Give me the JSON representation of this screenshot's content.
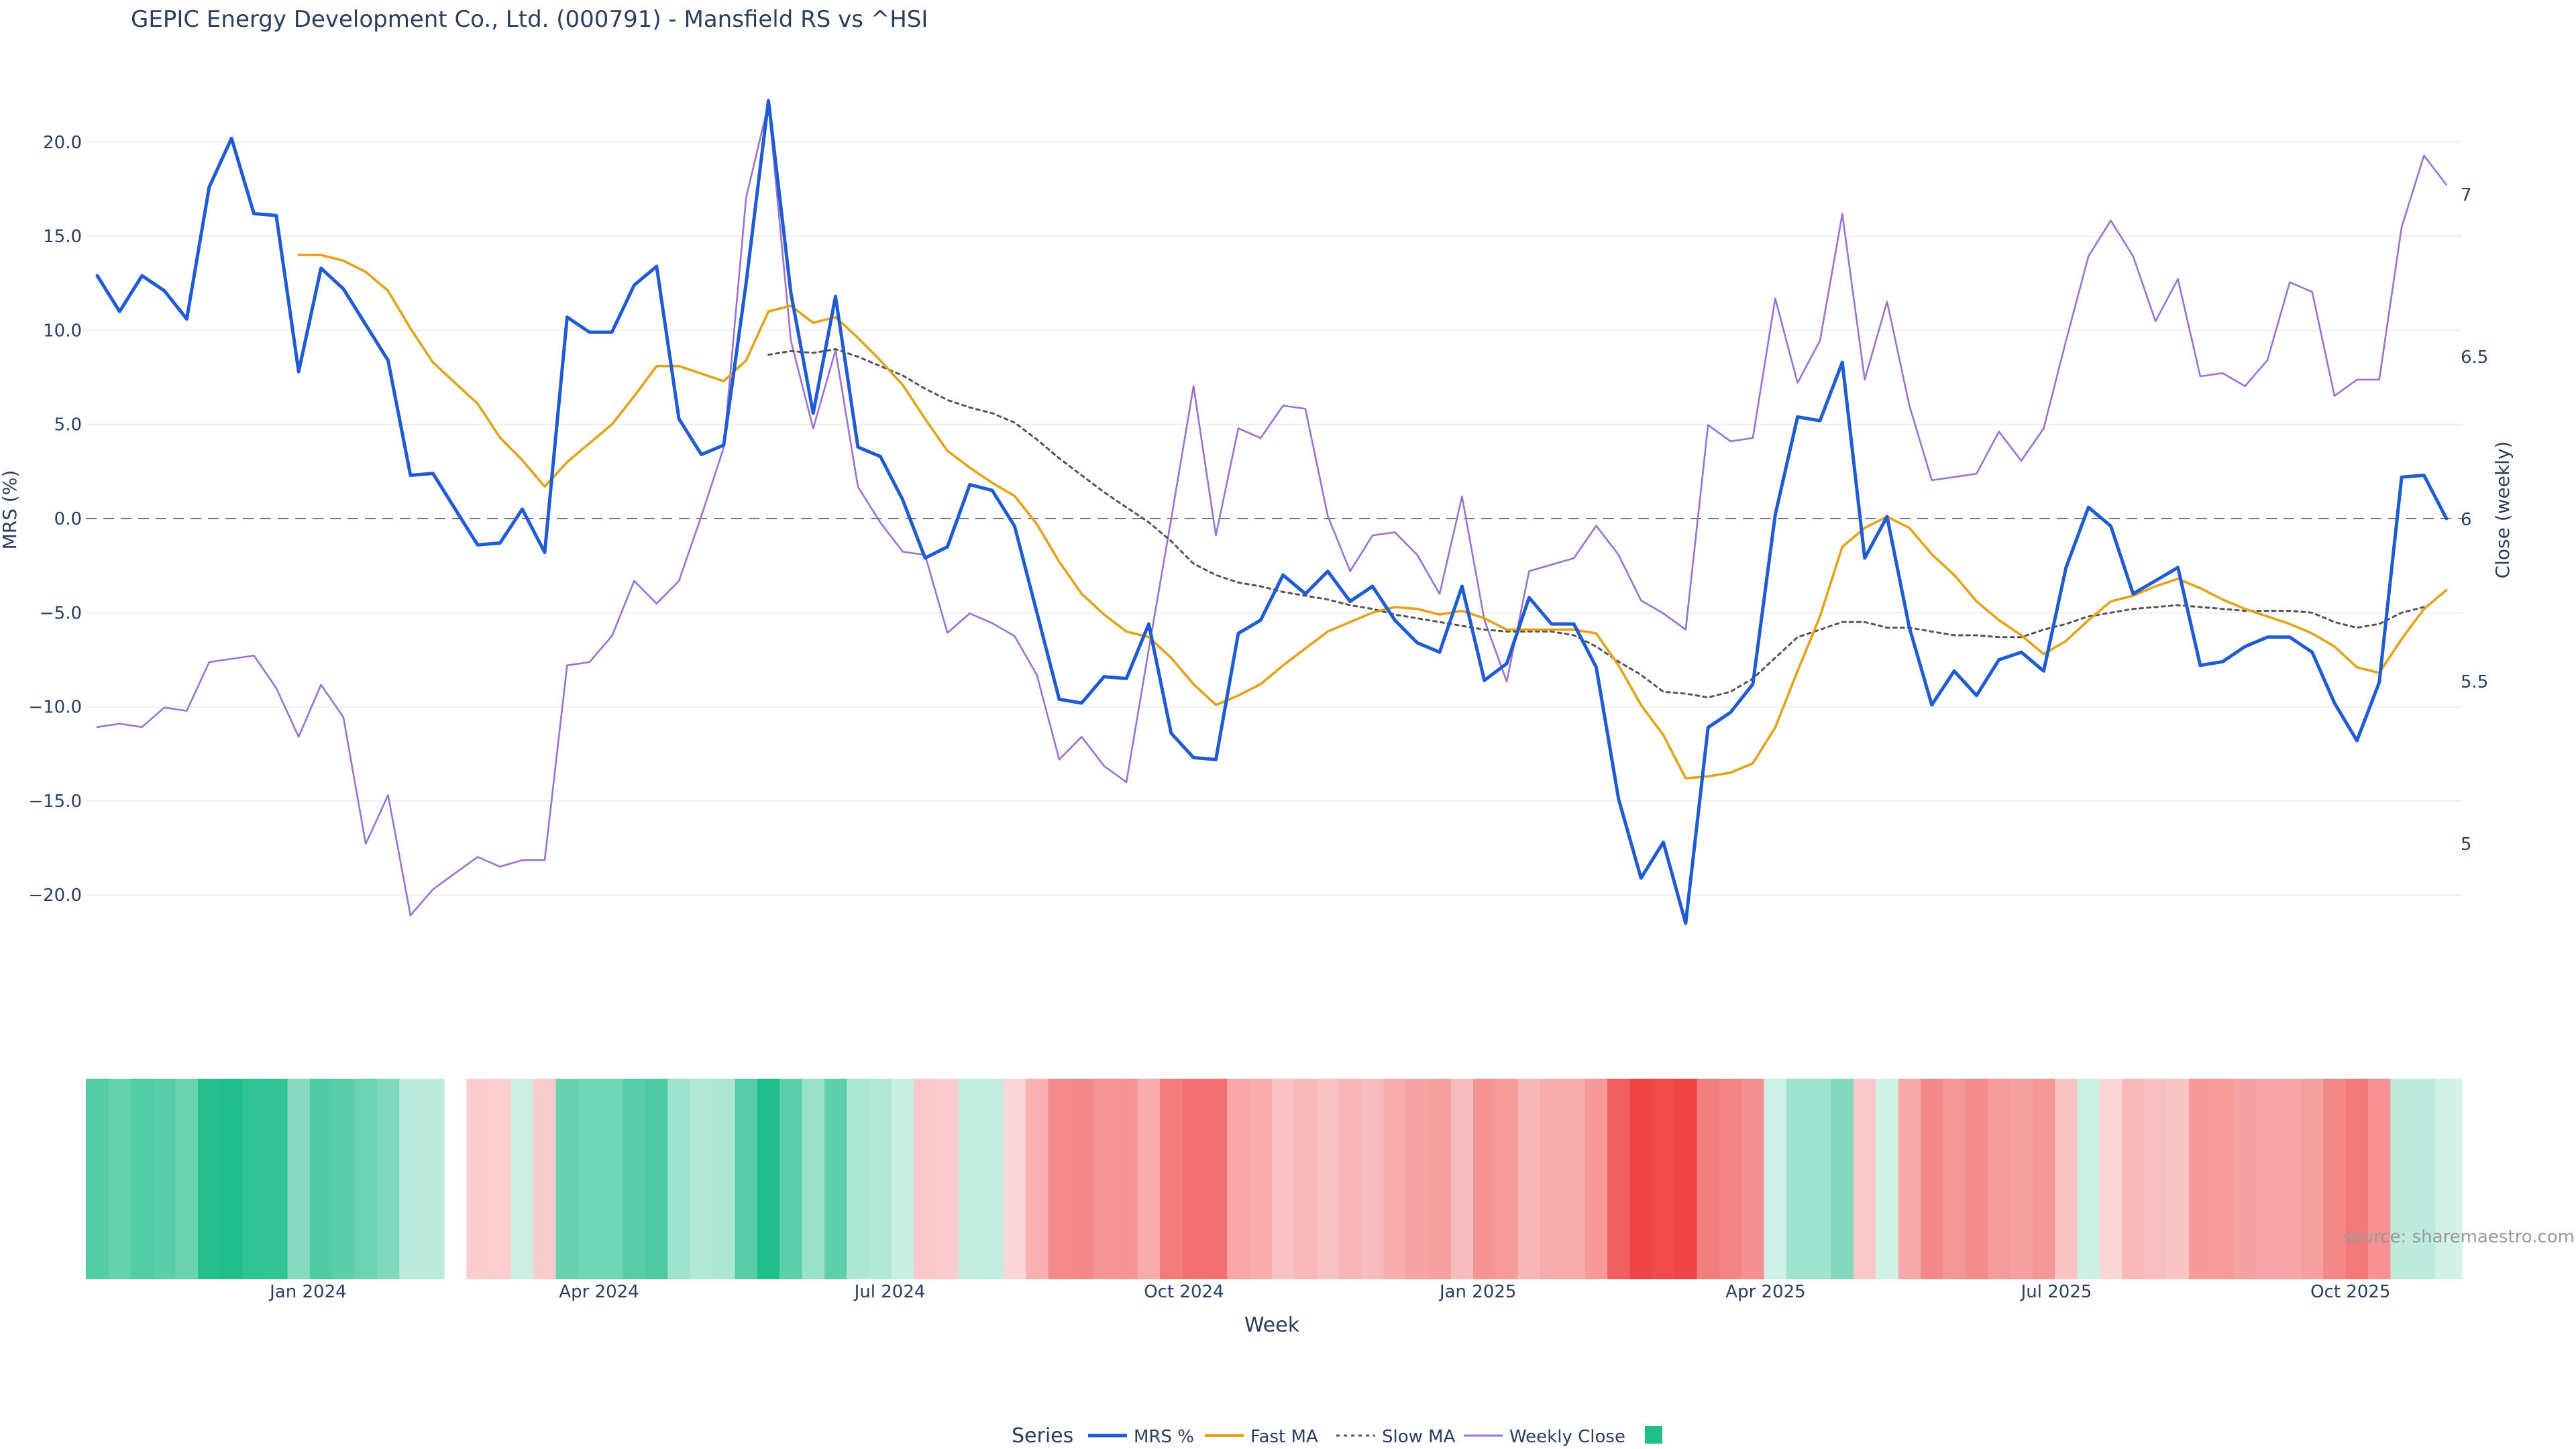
{
  "chart_data": {
    "type": "line",
    "title": "GEPIC Energy Development Co., Ltd. (000791) - Mansfield RS vs ^HSI",
    "xlabel": "Week",
    "ylabel_left": "MRS (%)",
    "ylabel_right": "Close (weekly)",
    "x_start": "2023-10-27",
    "x_interval_days": 7,
    "y_left_range": [
      -24,
      23
    ],
    "y_left_ticks": [
      20,
      15,
      10,
      5,
      0,
      -5,
      -10,
      -15,
      -20
    ],
    "y_left_tick_labels": [
      "20.0",
      "15.0",
      "10.0",
      "5.0",
      "0.0",
      "−5.0",
      "−10.0",
      "−15.0",
      "−20.0"
    ],
    "y_right_range": [
      4.65,
      7.35
    ],
    "y_right_ticks": [
      5,
      5.5,
      6,
      6.5,
      7
    ],
    "y_right_tick_labels": [
      "5",
      "5.5",
      "6",
      "6.5",
      "7"
    ],
    "x_ticks": [
      {
        "date": "2024-01-01",
        "label": "Jan 2024"
      },
      {
        "date": "2024-04-01",
        "label": "Apr 2024"
      },
      {
        "date": "2024-07-01",
        "label": "Jul 2024"
      },
      {
        "date": "2024-10-01",
        "label": "Oct 2024"
      },
      {
        "date": "2025-01-01",
        "label": "Jan 2025"
      },
      {
        "date": "2025-04-01",
        "label": "Apr 2025"
      },
      {
        "date": "2025-07-01",
        "label": "Jul 2025"
      },
      {
        "date": "2025-10-01",
        "label": "Oct 2025"
      }
    ],
    "zero_line": true,
    "grid": true,
    "legend_position": "bottom-center",
    "legend_title": "Series",
    "series": [
      {
        "name": "MRS %",
        "axis": "left",
        "color": "#1f5bd1",
        "style": "solid",
        "values": [
          12.9,
          11.0,
          12.9,
          12.1,
          10.6,
          17.6,
          20.2,
          16.2,
          16.1,
          7.8,
          13.3,
          12.2,
          10.3,
          8.4,
          2.3,
          2.4,
          0.5,
          -1.4,
          -1.3,
          0.5,
          -1.8,
          10.7,
          9.9,
          9.9,
          12.4,
          13.4,
          5.3,
          3.4,
          3.9,
          12.5,
          22.2,
          12.0,
          5.6,
          11.8,
          3.8,
          3.3,
          1.0,
          -2.1,
          -1.5,
          1.8,
          1.5,
          -0.4,
          -5.0,
          -9.6,
          -9.8,
          -8.4,
          -8.5,
          -5.6,
          -11.4,
          -12.7,
          -12.8,
          -6.1,
          -5.4,
          -3.0,
          -4.0,
          -2.8,
          -4.4,
          -3.6,
          -5.4,
          -6.6,
          -7.1,
          -3.6,
          -8.6,
          -7.7,
          -4.2,
          -5.6,
          -5.6,
          -7.9,
          -14.9,
          -19.1,
          -17.2,
          -21.5,
          -11.1,
          -10.3,
          -8.8,
          0.2,
          5.4,
          5.2,
          8.3,
          -2.1,
          0.1,
          -5.8,
          -9.9,
          -8.1,
          -9.4,
          -7.5,
          -7.1,
          -8.1,
          -2.6,
          0.6,
          -0.4,
          -4.0,
          -3.3,
          -2.6,
          -7.8,
          -7.6,
          -6.8,
          -6.3,
          -6.3,
          -7.1,
          -9.8,
          -11.8,
          -8.7,
          2.2,
          2.3,
          0.0
        ]
      },
      {
        "name": "Fast MA",
        "axis": "left",
        "color": "#e3a21a",
        "style": "solid",
        "values": [
          null,
          null,
          null,
          null,
          null,
          null,
          null,
          null,
          null,
          14.0,
          14.0,
          13.7,
          13.1,
          12.1,
          10.1,
          8.3,
          7.2,
          6.1,
          4.3,
          3.1,
          1.7,
          3.0,
          4.0,
          5.0,
          6.5,
          8.1,
          8.1,
          7.7,
          7.3,
          8.4,
          11.0,
          11.3,
          10.4,
          10.7,
          9.6,
          8.4,
          7.1,
          5.3,
          3.6,
          2.7,
          1.9,
          1.2,
          -0.3,
          -2.3,
          -4.0,
          -5.1,
          -6.0,
          -6.3,
          -7.4,
          -8.8,
          -9.9,
          -9.4,
          -8.8,
          -7.8,
          -6.9,
          -6.0,
          -5.5,
          -5.0,
          -4.7,
          -4.8,
          -5.1,
          -4.9,
          -5.3,
          -5.9,
          -5.9,
          -5.9,
          -5.9,
          -6.1,
          -7.8,
          -9.9,
          -11.5,
          -13.8,
          -13.7,
          -13.5,
          -13.0,
          -11.1,
          -8.1,
          -5.2,
          -1.5,
          -0.5,
          0.1,
          -0.5,
          -1.9,
          -3.0,
          -4.4,
          -5.4,
          -6.2,
          -7.2,
          -6.5,
          -5.4,
          -4.4,
          -4.1,
          -3.6,
          -3.2,
          -3.7,
          -4.3,
          -4.8,
          -5.2,
          -5.6,
          -6.1,
          -6.8,
          -7.9,
          -8.2,
          -6.4,
          -4.8,
          -3.8
        ]
      },
      {
        "name": "Slow MA",
        "axis": "left",
        "color": "#555555",
        "style": "dotted",
        "values": [
          null,
          null,
          null,
          null,
          null,
          null,
          null,
          null,
          null,
          null,
          null,
          null,
          null,
          null,
          null,
          null,
          null,
          null,
          null,
          null,
          null,
          null,
          null,
          null,
          null,
          null,
          null,
          null,
          null,
          null,
          8.7,
          8.9,
          8.8,
          9.0,
          8.6,
          8.1,
          7.6,
          6.9,
          6.3,
          5.9,
          5.6,
          5.1,
          4.2,
          3.2,
          2.3,
          1.4,
          0.6,
          -0.2,
          -1.2,
          -2.4,
          -3.0,
          -3.4,
          -3.6,
          -3.9,
          -4.1,
          -4.3,
          -4.6,
          -4.8,
          -5.1,
          -5.3,
          -5.5,
          -5.7,
          -5.9,
          -6.0,
          -6.0,
          -6.0,
          -6.2,
          -6.8,
          -7.6,
          -8.3,
          -9.2,
          -9.3,
          -9.5,
          -9.2,
          -8.5,
          -7.4,
          -6.3,
          -5.9,
          -5.5,
          -5.5,
          -5.8,
          -5.8,
          -6.0,
          -6.2,
          -6.2,
          -6.3,
          -6.3,
          -5.9,
          -5.6,
          -5.2,
          -5.0,
          -4.8,
          -4.7,
          -4.6,
          -4.7,
          -4.8,
          -4.9,
          -4.9,
          -4.9,
          -5.0,
          -5.5,
          -5.8,
          -5.6,
          -5.0,
          -4.7
        ]
      },
      {
        "name": "Weekly Close",
        "axis": "right",
        "color": "#9b72cf",
        "style": "solid",
        "values": [
          5.36,
          5.37,
          5.36,
          5.42,
          5.41,
          5.56,
          5.57,
          5.58,
          5.48,
          5.33,
          5.49,
          5.39,
          5.0,
          5.15,
          4.78,
          4.86,
          4.91,
          4.96,
          4.93,
          4.95,
          4.95,
          5.55,
          5.56,
          5.64,
          5.81,
          5.74,
          5.81,
          6.01,
          6.22,
          6.99,
          7.28,
          6.55,
          6.28,
          6.52,
          6.1,
          5.99,
          5.9,
          5.89,
          5.65,
          5.71,
          5.68,
          5.64,
          5.52,
          5.26,
          5.33,
          5.24,
          5.19,
          5.6,
          6.0,
          6.41,
          5.95,
          6.28,
          6.25,
          6.35,
          6.34,
          6.01,
          5.84,
          5.95,
          5.96,
          5.89,
          5.77,
          6.07,
          5.69,
          5.5,
          5.84,
          5.86,
          5.88,
          5.98,
          5.89,
          5.75,
          5.71,
          5.66,
          6.29,
          6.24,
          6.25,
          6.68,
          6.42,
          6.55,
          6.94,
          6.43,
          6.67,
          6.35,
          6.12,
          6.13,
          6.14,
          6.27,
          6.18,
          6.28,
          6.55,
          6.81,
          6.92,
          6.81,
          6.61,
          6.74,
          6.44,
          6.45,
          6.41,
          6.49,
          6.73,
          6.7,
          6.38,
          6.43,
          6.43,
          6.9,
          7.12,
          7.03
        ]
      }
    ],
    "heatmap": {
      "description_label": "",
      "color_positive": "#1fbd8a",
      "color_negative": "#ee4444",
      "values_source": "MRS %",
      "missing_indices": [
        16
      ]
    },
    "annotation": "source: sharemaestro.com"
  },
  "legend": {
    "title": "Series",
    "items": [
      "MRS %",
      "Fast MA",
      "Slow MA",
      "Weekly Close",
      ""
    ]
  }
}
